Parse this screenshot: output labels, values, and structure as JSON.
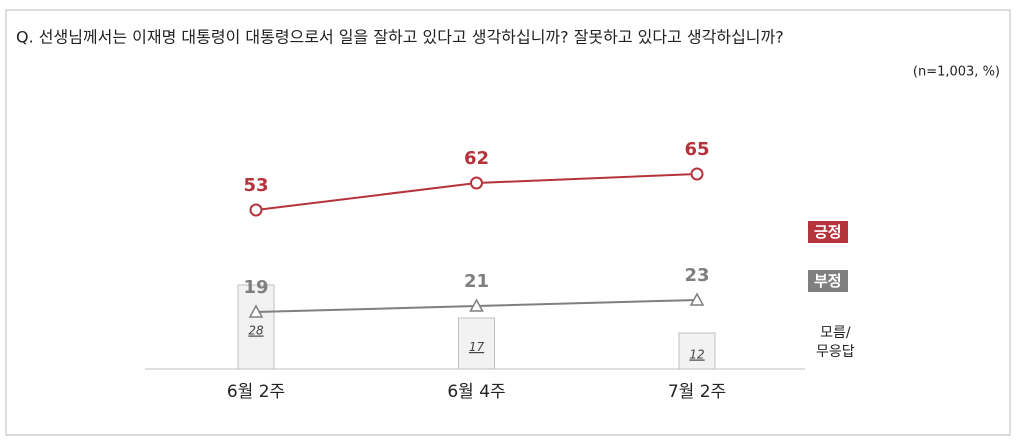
{
  "chart_data": {
    "type": "line",
    "title": "Q. 선생님께서는 이재명 대통령이 대통령으로서 일을 잘하고 있다고 생각하십니까? 잘못하고 있다고 생각하십니까?",
    "note": "(n=1,003, %)",
    "categories": [
      "6월 2주",
      "6월 4주",
      "7월 2주"
    ],
    "ylim": [
      0,
      100
    ],
    "series": [
      {
        "name": "긍정",
        "color": "#b5343c",
        "marker": "circle",
        "values": [
          53,
          62,
          65
        ]
      },
      {
        "name": "부정",
        "color": "#7f7f7f",
        "marker": "triangle",
        "values": [
          19,
          21,
          23
        ]
      },
      {
        "name": "모름/\n무응답",
        "type": "bar",
        "color": "#f2f2f2",
        "values": [
          28,
          17,
          12
        ]
      }
    ]
  }
}
